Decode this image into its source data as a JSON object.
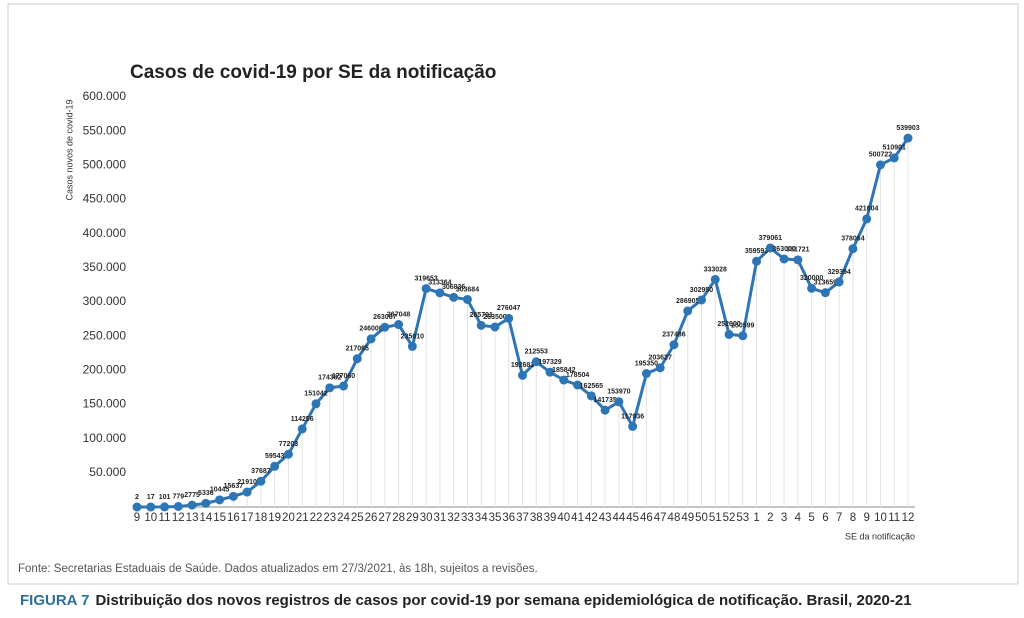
{
  "chart_data": {
    "type": "line",
    "title": "Casos de covid-19 por SE da notificação",
    "y_label": "Casos novos de covid-19",
    "x_label": "SE da notificação",
    "source": "Fonte: Secretarias Estaduais de Saúde. Dados atualizados em 27/3/2021, às 18h, sujeitos a revisões.",
    "figure_label": "FIGURA 7",
    "caption": "Distribuição dos novos registros de casos por covid-19 por semana epidemiológica de notificação. Brasil, 2020-21",
    "categories": [
      "9",
      "10",
      "11",
      "12",
      "13",
      "14",
      "15",
      "16",
      "17",
      "18",
      "19",
      "20",
      "21",
      "22",
      "23",
      "24",
      "25",
      "26",
      "27",
      "28",
      "29",
      "30",
      "31",
      "32",
      "33",
      "34",
      "35",
      "36",
      "37",
      "38",
      "39",
      "40",
      "41",
      "42",
      "43",
      "44",
      "45",
      "46",
      "47",
      "48",
      "49",
      "50",
      "51",
      "52",
      "53",
      "1",
      "2",
      "3",
      "4",
      "5",
      "6",
      "7",
      "8",
      "9",
      "10",
      "11",
      "12"
    ],
    "series": [
      {
        "name": "Casos",
        "color": "#2e75b6",
        "values": [
          2,
          17,
          101,
          779,
          2775,
          5336,
          10445,
          15637,
          21910,
          37687,
          59543,
          77203,
          114256,
          151042,
          174382,
          177060,
          217065,
          246006,
          263067,
          267048,
          235010,
          319653,
          313364,
          306836,
          303684,
          265791,
          263500,
          276047,
          192681,
          212553,
          197329,
          185842,
          178504,
          162565,
          141735,
          153970,
          117936,
          195350,
          203627,
          237486,
          286905,
          302950,
          333028,
          252600,
          250599,
          359593,
          379061,
          363000,
          361721,
          320000,
          313659,
          329394,
          378064,
          421604,
          500722,
          510901,
          539903
        ]
      }
    ],
    "ylim": [
      0,
      600000
    ],
    "yticks": [
      {
        "value": 50000,
        "label": "50.000"
      },
      {
        "value": 100000,
        "label": "100.000"
      },
      {
        "value": 150000,
        "label": "150.000"
      },
      {
        "value": 200000,
        "label": "200.000"
      },
      {
        "value": 250000,
        "label": "250.000"
      },
      {
        "value": 300000,
        "label": "300.000"
      },
      {
        "value": 350000,
        "label": "350.000"
      },
      {
        "value": 400000,
        "label": "400.000"
      },
      {
        "value": 450000,
        "label": "450.000"
      },
      {
        "value": 500000,
        "label": "500.000"
      },
      {
        "value": 550000,
        "label": "550.000"
      },
      {
        "value": 600000,
        "label": "600.000"
      }
    ],
    "data_labels": true
  }
}
